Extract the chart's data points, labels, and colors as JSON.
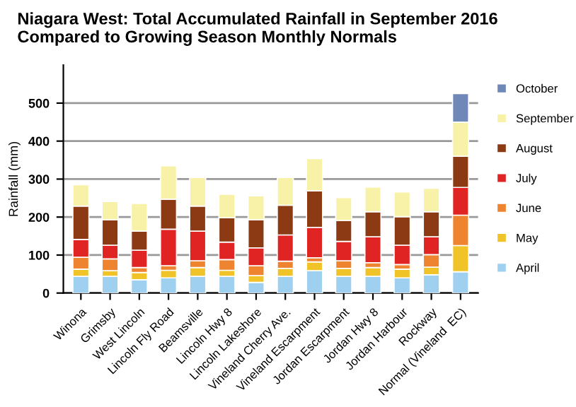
{
  "chart_data": {
    "type": "bar",
    "stacked": true,
    "title": "Niagara West: Total Accumulated Rainfall in September 2016\nCompared to Growing Season Monthly Normals",
    "ylabel": "Rainfall (mm)",
    "categories": [
      "Winona",
      "Grimsby",
      "West Lincoln",
      "Lincoln Fly Road",
      "Beamsville",
      "Lincoln Hwy 8",
      "Lincoln Lakeshore",
      "Vineland Cherry Ave.",
      "Vineland Escarpment",
      "Jordan Escarpment",
      "Jordan Hwy 8",
      "Jordan Harbour",
      "Rockway",
      "Normal (Vineland  EC)"
    ],
    "series": [
      {
        "name": "April",
        "color": "#9fd0f0",
        "values": [
          44,
          44,
          35,
          40,
          44,
          44,
          28,
          44,
          59,
          44,
          44,
          40,
          48,
          56
        ]
      },
      {
        "name": "May",
        "color": "#f0c428",
        "values": [
          19,
          15,
          19,
          20,
          23,
          16,
          18,
          21,
          23,
          21,
          23,
          23,
          20,
          69
        ]
      },
      {
        "name": "June",
        "color": "#ee8430",
        "values": [
          31,
          31,
          13,
          12,
          18,
          28,
          26,
          19,
          11,
          20,
          13,
          12,
          33,
          80
        ]
      },
      {
        "name": "July",
        "color": "#e02424",
        "values": [
          47,
          36,
          46,
          96,
          78,
          46,
          47,
          69,
          80,
          51,
          68,
          51,
          47,
          73
        ]
      },
      {
        "name": "August",
        "color": "#8b3a14",
        "values": [
          88,
          67,
          50,
          79,
          66,
          64,
          74,
          78,
          96,
          55,
          66,
          75,
          66,
          82
        ]
      },
      {
        "name": "September",
        "color": "#f8f2a8",
        "values": [
          56,
          48,
          73,
          88,
          75,
          62,
          63,
          73,
          85,
          60,
          65,
          65,
          62,
          90
        ]
      },
      {
        "name": "October",
        "color": "#7088b8",
        "values": [
          null,
          null,
          null,
          null,
          null,
          null,
          null,
          null,
          null,
          null,
          null,
          null,
          null,
          75
        ]
      }
    ],
    "ylim": [
      0,
      600
    ],
    "yticks": [
      0,
      100,
      200,
      300,
      400,
      500
    ],
    "grid": "y",
    "legend": "right"
  }
}
